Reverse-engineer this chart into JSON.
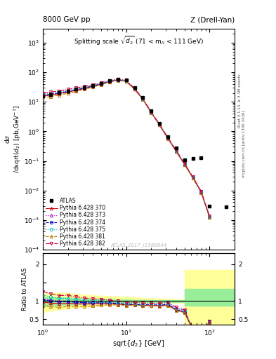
{
  "title_left": "8000 GeV pp",
  "title_right": "Z (Drell-Yan)",
  "plot_title": "Splitting scale $\\sqrt{\\overline{d_2}}$ (71 < m$_{ll}$ < 111 GeV)",
  "ylabel_main": "d$\\sigma$\n/dsqrt($\\overline{d_{2}}$) [pb,GeV$^{-1}$]",
  "ylabel_ratio": "Ratio to ATLAS",
  "xlabel": "sqrt{$\\overline{d_{2}}$} [GeV]",
  "right_label_top": "Rivet 3.1.10, ≥ 3.3M events",
  "right_label_bot": "mcplots.cern.ch [arXiv:1306.3436]",
  "watermark": "ATLAS_2017_I1589844",
  "atlas_x": [
    1.0,
    1.25,
    1.58,
    2.0,
    2.51,
    3.16,
    3.98,
    5.01,
    6.31,
    7.94,
    10.0,
    12.6,
    15.8,
    19.9,
    25.1,
    31.6,
    39.8,
    50.1,
    63.1,
    79.4,
    100.0,
    158.0
  ],
  "atlas_y": [
    16.0,
    18.0,
    20.5,
    23.0,
    26.5,
    31.0,
    36.5,
    43.0,
    52.0,
    60.0,
    56.0,
    30.0,
    14.0,
    5.0,
    1.9,
    0.65,
    0.28,
    0.11,
    0.12,
    0.13,
    0.003,
    0.0028
  ],
  "py370_x": [
    1.0,
    1.25,
    1.58,
    2.0,
    2.51,
    3.16,
    3.98,
    5.01,
    6.31,
    7.94,
    10.0,
    12.6,
    15.8,
    19.9,
    25.1,
    31.6,
    39.8,
    50.1,
    63.1,
    79.4,
    100.0
  ],
  "py370_y": [
    15.5,
    17.0,
    19.0,
    21.5,
    24.5,
    28.5,
    33.5,
    40.0,
    48.0,
    55.0,
    50.0,
    27.0,
    12.3,
    4.4,
    1.65,
    0.58,
    0.21,
    0.076,
    0.027,
    0.0088,
    0.00125
  ],
  "py370_color": "#cc0000",
  "py370_linestyle": "-",
  "py370_marker": "^",
  "py373_x": [
    1.0,
    1.25,
    1.58,
    2.0,
    2.51,
    3.16,
    3.98,
    5.01,
    6.31,
    7.94,
    10.0,
    12.6,
    15.8,
    19.9,
    25.1,
    31.6,
    39.8,
    50.1,
    63.1,
    79.4,
    100.0
  ],
  "py373_y": [
    17.0,
    18.5,
    20.5,
    23.0,
    26.0,
    30.0,
    35.0,
    41.5,
    49.5,
    56.5,
    51.5,
    27.5,
    12.6,
    4.5,
    1.7,
    0.6,
    0.22,
    0.079,
    0.028,
    0.0091,
    0.0013
  ],
  "py373_color": "#aa00cc",
  "py373_linestyle": ":",
  "py373_marker": "^",
  "py374_x": [
    1.0,
    1.25,
    1.58,
    2.0,
    2.51,
    3.16,
    3.98,
    5.01,
    6.31,
    7.94,
    10.0,
    12.6,
    15.8,
    19.9,
    25.1,
    31.6,
    39.8,
    50.1,
    63.1,
    79.4,
    100.0
  ],
  "py374_y": [
    16.5,
    18.0,
    20.0,
    22.5,
    25.5,
    29.5,
    34.5,
    41.0,
    49.0,
    56.0,
    51.0,
    27.2,
    12.5,
    4.5,
    1.68,
    0.59,
    0.215,
    0.077,
    0.027,
    0.0089,
    0.00128
  ],
  "py374_color": "#0000cc",
  "py374_linestyle": "--",
  "py374_marker": "o",
  "py375_x": [
    1.0,
    1.25,
    1.58,
    2.0,
    2.51,
    3.16,
    3.98,
    5.01,
    6.31,
    7.94,
    10.0,
    12.6,
    15.8,
    19.9,
    25.1,
    31.6,
    39.8,
    50.1,
    63.1,
    79.4,
    100.0
  ],
  "py375_y": [
    18.5,
    20.0,
    22.0,
    24.5,
    27.5,
    31.5,
    36.5,
    43.0,
    51.0,
    58.0,
    52.5,
    28.0,
    12.8,
    4.6,
    1.73,
    0.61,
    0.225,
    0.081,
    0.028,
    0.0092,
    0.00133
  ],
  "py375_color": "#00bbbb",
  "py375_linestyle": ":",
  "py375_marker": "o",
  "py381_x": [
    1.0,
    1.25,
    1.58,
    2.0,
    2.51,
    3.16,
    3.98,
    5.01,
    6.31,
    7.94,
    10.0,
    12.6,
    15.8,
    19.9,
    25.1,
    31.6,
    39.8,
    50.1,
    63.1,
    79.4,
    100.0
  ],
  "py381_y": [
    14.0,
    15.2,
    17.0,
    19.5,
    22.5,
    26.5,
    31.5,
    38.0,
    46.5,
    53.5,
    49.0,
    26.5,
    12.2,
    4.35,
    1.63,
    0.57,
    0.208,
    0.075,
    0.026,
    0.0085,
    0.00122
  ],
  "py381_color": "#bb7700",
  "py381_linestyle": "--",
  "py381_marker": "^",
  "py382_x": [
    1.0,
    1.25,
    1.58,
    2.0,
    2.51,
    3.16,
    3.98,
    5.01,
    6.31,
    7.94,
    10.0,
    12.6,
    15.8,
    19.9,
    25.1,
    31.6,
    39.8,
    50.1,
    63.1,
    79.4,
    100.0
  ],
  "py382_y": [
    20.0,
    21.5,
    23.5,
    26.5,
    29.5,
    33.5,
    38.5,
    45.0,
    53.0,
    60.0,
    54.0,
    28.8,
    13.2,
    4.7,
    1.77,
    0.63,
    0.232,
    0.083,
    0.029,
    0.0095,
    0.00136
  ],
  "py382_color": "#cc0044",
  "py382_linestyle": "-.",
  "py382_marker": "v",
  "xlim": [
    1.0,
    200.0
  ],
  "ylim_main": [
    0.0001,
    3000.0
  ],
  "ylim_ratio": [
    0.35,
    2.3
  ]
}
